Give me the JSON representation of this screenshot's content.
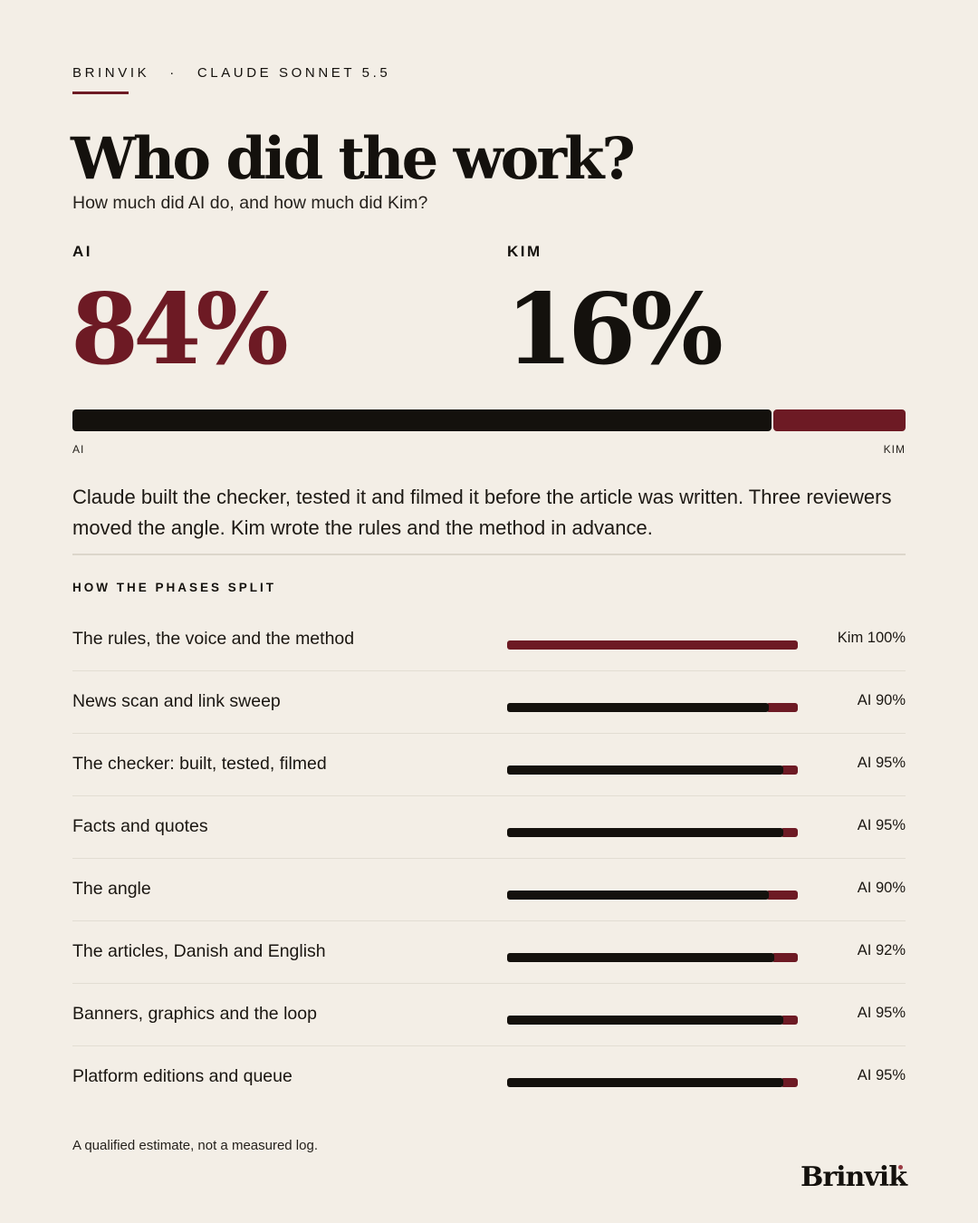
{
  "header": {
    "brand": "BRINVIK",
    "separator": "·",
    "model": "CLAUDE SONNET 5.5"
  },
  "title": "Who did the work?",
  "subtitle": "How much did AI do, and how much did Kim?",
  "stats": {
    "ai_label": "AI",
    "ai_value": "84%",
    "kim_label": "KIM",
    "kim_value": "16%"
  },
  "main_bar": {
    "left_label": "AI",
    "right_label": "KIM"
  },
  "summary": "Claude built the checker, tested it and filmed it before the article was written. Three reviewers moved the angle. Kim wrote the rules and the method in advance.",
  "section_label": "HOW THE PHASES SPLIT",
  "footnote": "A qualified estimate, not a measured log.",
  "logo": "Brinvik",
  "colors": {
    "ai": "#14110d",
    "kim": "#6d1a24",
    "background": "#f3eee6"
  },
  "chart_data": [
    {
      "type": "bar",
      "orientation": "horizontal-stacked",
      "series": [
        {
          "name": "AI",
          "values": [
            84
          ]
        },
        {
          "name": "KIM",
          "values": [
            16
          ]
        }
      ]
    },
    {
      "type": "bar",
      "orientation": "horizontal-stacked",
      "title": "HOW THE PHASES SPLIT",
      "categories": [
        "The rules, the voice and the method",
        "News scan and link sweep",
        "The checker: built, tested, filmed",
        "Facts and quotes",
        "The angle",
        "The articles, Danish and English",
        "Banners, graphics and the loop",
        "Platform editions and queue"
      ],
      "series": [
        {
          "values": [
            0,
            90,
            95,
            95,
            90,
            92,
            95,
            95
          ]
        },
        {
          "values": [
            100,
            10,
            5,
            5,
            10,
            8,
            5,
            5
          ]
        }
      ],
      "data_labels": [
        "Kim 100%",
        "AI 90%",
        "AI 95%",
        "AI 95%",
        "AI 90%",
        "AI 92%",
        "AI 95%",
        "AI 95%"
      ],
      "xlim": [
        0,
        100
      ]
    }
  ]
}
